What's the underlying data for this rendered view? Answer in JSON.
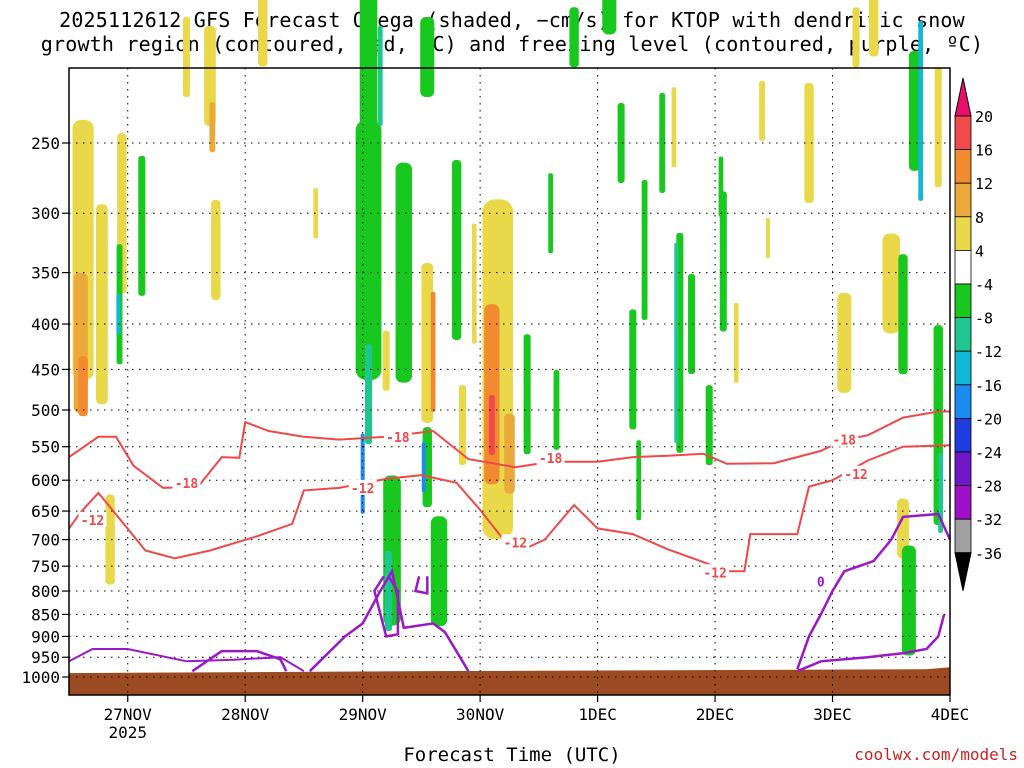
{
  "titles": {
    "line1": "2025112612 GFS Forecast Omega (shaded, −cm/s) for KTOP with dendritic snow",
    "line2": "growth region (contoured, red, ºC) and freezing level (contoured, purple, ºC)"
  },
  "footer": {
    "xlabel": "Forecast Time (UTC)",
    "credit": "coolwx.com/models"
  },
  "colors": {
    "ground": "#9b4a22",
    "dgz_contour": "#f04848",
    "freezing_contour": "#9a18c8",
    "grid": "#000000"
  },
  "chart_data": {
    "type": "heatmap",
    "title": "2025112612 GFS Forecast Omega (shaded, −cm/s) for KTOP with dendritic snow growth region (contoured, red, ºC) and freezing level (contoured, purple, ºC)",
    "xlabel": "Forecast Time (UTC)",
    "ylabel": "",
    "y_scale": "log-pressure",
    "y_reversed": true,
    "ylim": [
      1020,
      200
    ],
    "yticks": [
      250,
      300,
      350,
      400,
      450,
      500,
      550,
      600,
      650,
      700,
      750,
      800,
      850,
      900,
      950,
      1000
    ],
    "xticks": [
      {
        "day": 1,
        "label": "27NOV",
        "sublabel": "2025"
      },
      {
        "day": 2,
        "label": "28NOV"
      },
      {
        "day": 3,
        "label": "29NOV"
      },
      {
        "day": 4,
        "label": "30NOV"
      },
      {
        "day": 5,
        "label": "1DEC"
      },
      {
        "day": 6,
        "label": "2DEC"
      },
      {
        "day": 7,
        "label": "3DEC"
      },
      {
        "day": 8,
        "label": "4DEC"
      }
    ],
    "xlim": [
      0.5,
      8.0
    ],
    "grid": true,
    "colorbar": {
      "ticks": [
        20,
        16,
        12,
        8,
        4,
        -4,
        -8,
        -12,
        -16,
        -20,
        -24,
        -28,
        -32,
        -36
      ],
      "bins": [
        {
          "from": 20,
          "to": 24,
          "color": "#e8106c"
        },
        {
          "from": 16,
          "to": 20,
          "color": "#f04a4a"
        },
        {
          "from": 12,
          "to": 16,
          "color": "#f28a30"
        },
        {
          "from": 8,
          "to": 12,
          "color": "#eaa93a"
        },
        {
          "from": 4,
          "to": 8,
          "color": "#e9d94a"
        },
        {
          "from": -4,
          "to": 4,
          "color": "#ffffff"
        },
        {
          "from": -8,
          "to": -4,
          "color": "#19c81e"
        },
        {
          "from": -12,
          "to": -8,
          "color": "#20c690"
        },
        {
          "from": -16,
          "to": -12,
          "color": "#10b8d8"
        },
        {
          "from": -20,
          "to": -16,
          "color": "#1a8cf0"
        },
        {
          "from": -24,
          "to": -20,
          "color": "#1e3ce0"
        },
        {
          "from": -28,
          "to": -24,
          "color": "#7018c8"
        },
        {
          "from": -32,
          "to": -28,
          "color": "#a010c8"
        },
        {
          "from": -36,
          "to": -32,
          "color": "#a0a0a0"
        },
        {
          "from": -40,
          "to": -36,
          "color": "#000000"
        }
      ]
    },
    "series": [
      {
        "name": "-18",
        "points": [
          [
            0.5,
            565
          ],
          [
            0.75,
            536
          ],
          [
            0.9,
            536
          ],
          [
            1.05,
            578
          ],
          [
            1.3,
            612
          ],
          [
            1.6,
            610
          ],
          [
            1.8,
            565
          ],
          [
            1.95,
            566
          ],
          [
            2.0,
            516
          ],
          [
            2.2,
            528
          ],
          [
            2.5,
            536
          ],
          [
            2.8,
            540
          ],
          [
            3.2,
            536
          ],
          [
            3.6,
            528
          ],
          [
            3.9,
            568
          ],
          [
            4.3,
            580
          ],
          [
            4.6,
            572
          ],
          [
            5.0,
            572
          ],
          [
            5.3,
            565
          ],
          [
            5.6,
            563
          ],
          [
            5.9,
            560
          ],
          [
            6.1,
            575
          ],
          [
            6.5,
            574
          ],
          [
            6.9,
            556
          ],
          [
            7.1,
            540
          ],
          [
            7.3,
            534
          ],
          [
            7.6,
            510
          ],
          [
            7.9,
            502
          ],
          [
            8.0,
            502
          ]
        ],
        "labels": [
          [
            1.5,
            604,
            "-18"
          ],
          [
            3.3,
            536,
            "-18"
          ],
          [
            4.6,
            566,
            "-18"
          ],
          [
            7.1,
            540,
            "-18"
          ]
        ]
      },
      {
        "name": "-12",
        "points": [
          [
            0.5,
            680
          ],
          [
            0.6,
            652
          ],
          [
            0.75,
            620
          ],
          [
            0.95,
            668
          ],
          [
            1.15,
            720
          ],
          [
            1.4,
            735
          ],
          [
            1.7,
            720
          ],
          [
            2.1,
            694
          ],
          [
            2.4,
            672
          ],
          [
            2.5,
            616
          ],
          [
            2.8,
            612
          ],
          [
            3.2,
            598
          ],
          [
            3.5,
            592
          ],
          [
            3.8,
            604
          ],
          [
            4.0,
            648
          ],
          [
            4.2,
            700
          ],
          [
            4.4,
            715
          ],
          [
            4.55,
            700
          ],
          [
            4.8,
            640
          ],
          [
            5.0,
            680
          ],
          [
            5.3,
            690
          ],
          [
            5.6,
            718
          ],
          [
            5.9,
            742
          ],
          [
            6.1,
            760
          ],
          [
            6.25,
            760
          ],
          [
            6.3,
            690
          ],
          [
            6.7,
            690
          ],
          [
            6.8,
            610
          ],
          [
            7.0,
            600
          ],
          [
            7.3,
            570
          ],
          [
            7.6,
            550
          ],
          [
            8.0,
            548
          ]
        ],
        "labels": [
          [
            0.7,
            665,
            "-12"
          ],
          [
            3.0,
            612,
            "-12"
          ],
          [
            4.3,
            705,
            "-12"
          ],
          [
            6.0,
            762,
            "-12"
          ],
          [
            7.2,
            590,
            "-12"
          ]
        ]
      },
      {
        "name": "0",
        "points": [
          [
            0.5,
            960
          ],
          [
            0.7,
            930
          ],
          [
            1.0,
            930
          ],
          [
            1.5,
            960
          ],
          [
            1.9,
            956
          ],
          [
            2.3,
            950
          ],
          [
            2.5,
            985
          ]
        ],
        "labels": [
          [
            6.9,
            780,
            "0"
          ]
        ]
      }
    ]
  }
}
